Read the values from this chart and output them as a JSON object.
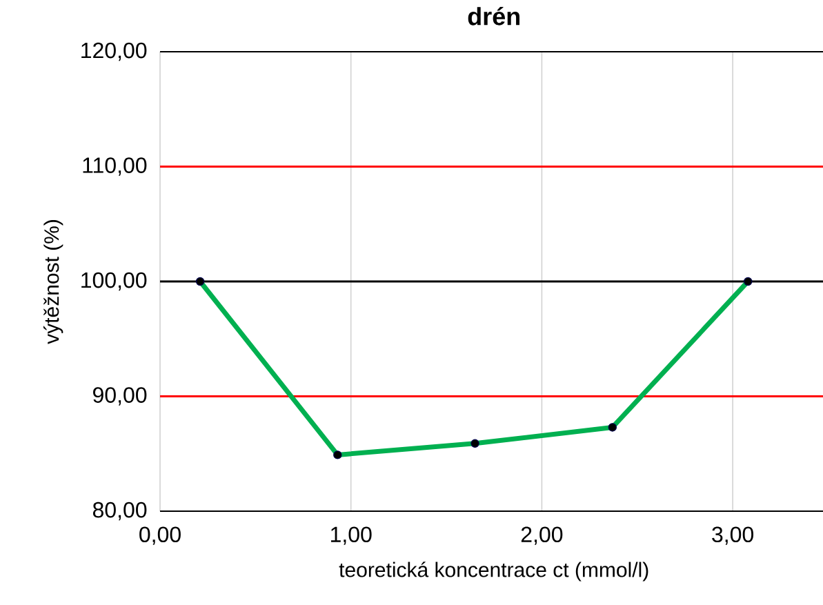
{
  "chart_data": {
    "type": "line",
    "title": "drén",
    "xlabel": "teoretická koncentrace  ct (mmol/l)",
    "ylabel": "výtěžnost (%)",
    "x": [
      0.21,
      0.93,
      1.65,
      2.37,
      3.08
    ],
    "series": [
      {
        "color": "#00b050",
        "values": [
          100.0,
          84.9,
          85.9,
          87.3,
          100.0
        ]
      }
    ],
    "marker": "circle",
    "grid": "x",
    "xlim": [
      0,
      3.5
    ],
    "ylim": [
      80,
      120
    ],
    "xticks": [
      {
        "value": 0,
        "label": "0,00"
      },
      {
        "value": 1,
        "label": "1,00"
      },
      {
        "value": 2,
        "label": "2,00"
      },
      {
        "value": 3,
        "label": "3,00"
      }
    ],
    "yticks": [
      {
        "value": 80,
        "label": "80,00"
      },
      {
        "value": 90,
        "label": "90,00"
      },
      {
        "value": 100,
        "label": "100,00"
      },
      {
        "value": 110,
        "label": "110,00"
      },
      {
        "value": 120,
        "label": "120,00"
      }
    ],
    "ref_lines": [
      {
        "axis": "y",
        "value": 110,
        "color": "#ff0000"
      },
      {
        "axis": "y",
        "value": 100,
        "color": "#000000"
      },
      {
        "axis": "y",
        "value": 90,
        "color": "#ff0000"
      }
    ]
  }
}
